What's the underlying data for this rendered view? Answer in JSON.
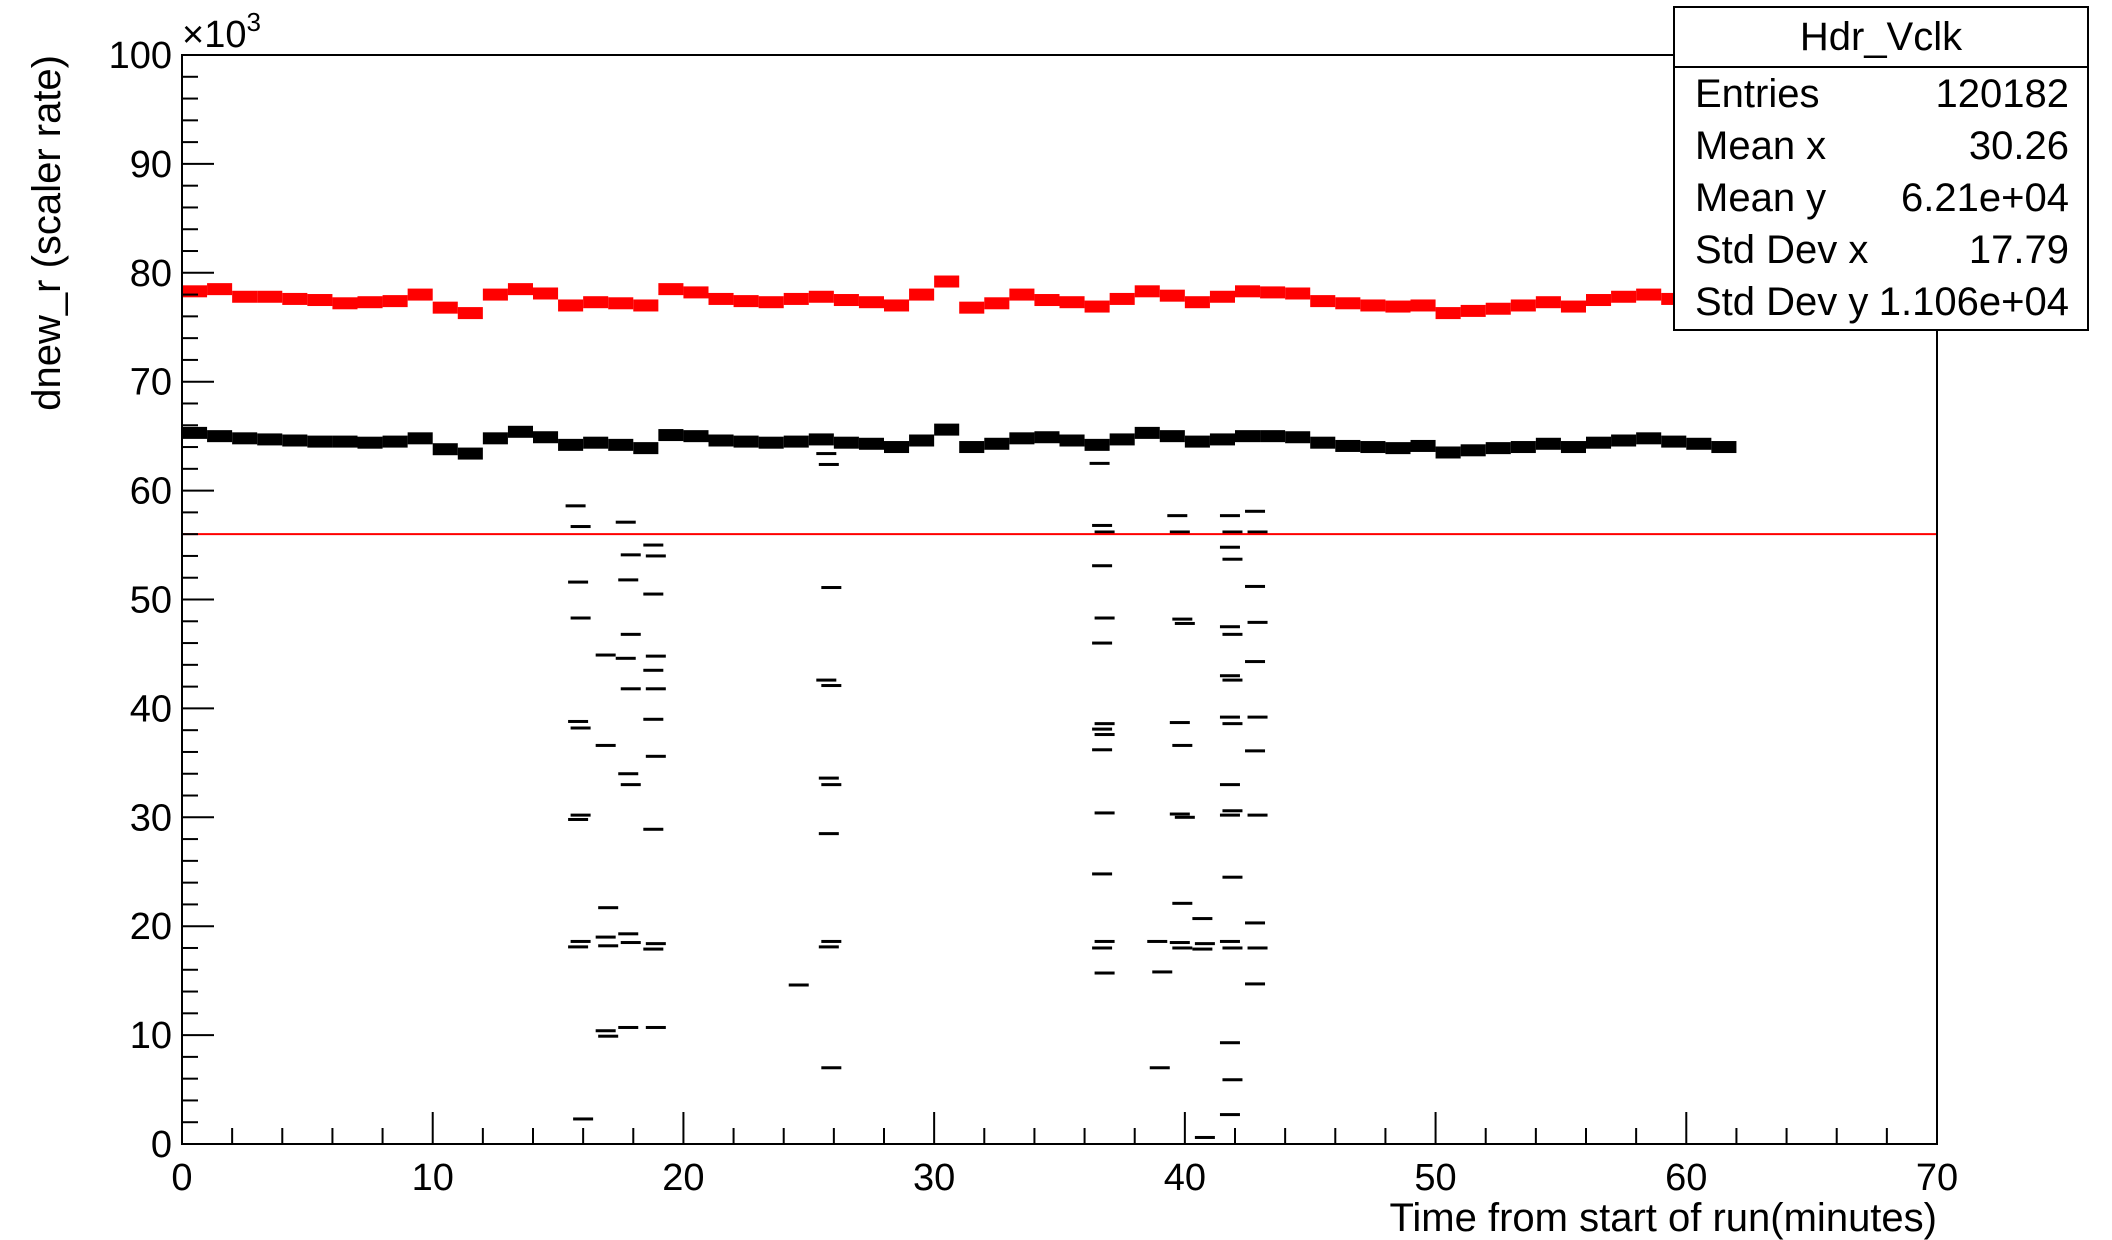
{
  "stats_box": {
    "title": "Hdr_Vclk",
    "rows": [
      {
        "label": "Entries",
        "value": "120182"
      },
      {
        "label": "Mean x",
        "value": "30.26"
      },
      {
        "label": "Mean y",
        "value": "6.21e+04"
      },
      {
        "label": "Std Dev x",
        "value": "17.79"
      },
      {
        "label": "Std Dev y",
        "value": "1.106e+04"
      }
    ]
  },
  "chart_data": {
    "type": "scatter",
    "title": "",
    "xlabel": "Time from start of run(minutes)",
    "ylabel": "dnew_r (scaler rate)",
    "y_multiplier_label": "×10",
    "y_multiplier_exp": "3",
    "xlim": [
      0,
      70
    ],
    "ylim": [
      0,
      100
    ],
    "x_ticks": [
      "0",
      "10",
      "20",
      "30",
      "40",
      "50",
      "60",
      "70"
    ],
    "y_ticks": [
      "0",
      "10",
      "20",
      "30",
      "40",
      "50",
      "60",
      "70",
      "80",
      "90",
      "100"
    ],
    "threshold_line": {
      "y": 56,
      "color": "#ff0000"
    },
    "series": [
      {
        "color": "#ff0000",
        "points": [
          [
            0,
            78.3
          ],
          [
            1,
            78.5
          ],
          [
            2,
            77.8
          ],
          [
            3,
            77.8
          ],
          [
            4,
            77.6
          ],
          [
            5,
            77.5
          ],
          [
            6,
            77.2
          ],
          [
            7,
            77.3
          ],
          [
            8,
            77.4
          ],
          [
            9,
            78.0
          ],
          [
            10,
            76.8
          ],
          [
            11,
            76.3
          ],
          [
            12,
            78.0
          ],
          [
            13,
            78.5
          ],
          [
            14,
            78.1
          ],
          [
            15,
            77.0
          ],
          [
            16,
            77.3
          ],
          [
            17,
            77.2
          ],
          [
            18,
            77.0
          ],
          [
            19,
            78.5
          ],
          [
            20,
            78.2
          ],
          [
            21,
            77.6
          ],
          [
            22,
            77.4
          ],
          [
            23,
            77.3
          ],
          [
            24,
            77.6
          ],
          [
            25,
            77.8
          ],
          [
            26,
            77.5
          ],
          [
            27,
            77.3
          ],
          [
            28,
            77.0
          ],
          [
            29,
            78.0
          ],
          [
            30,
            79.2
          ],
          [
            31,
            76.8
          ],
          [
            32,
            77.2
          ],
          [
            33,
            78.0
          ],
          [
            34,
            77.5
          ],
          [
            35,
            77.3
          ],
          [
            36,
            76.9
          ],
          [
            37,
            77.6
          ],
          [
            38,
            78.3
          ],
          [
            39,
            77.9
          ],
          [
            40,
            77.3
          ],
          [
            41,
            77.8
          ],
          [
            42,
            78.3
          ],
          [
            43,
            78.2
          ],
          [
            44,
            78.1
          ],
          [
            45,
            77.4
          ],
          [
            46,
            77.2
          ],
          [
            47,
            77.0
          ],
          [
            48,
            76.9
          ],
          [
            49,
            77.0
          ],
          [
            50,
            76.3
          ],
          [
            51,
            76.5
          ],
          [
            52,
            76.7
          ],
          [
            53,
            77.0
          ],
          [
            54,
            77.3
          ],
          [
            55,
            76.9
          ],
          [
            56,
            77.5
          ],
          [
            57,
            77.8
          ],
          [
            58,
            78.0
          ],
          [
            59,
            77.6
          ],
          [
            60,
            77.4
          ],
          [
            61,
            77.2
          ],
          [
            62,
            77.0
          ],
          [
            63,
            77.1
          ],
          [
            64,
            77.3
          ],
          [
            65,
            77.2
          ]
        ]
      },
      {
        "color": "#000000",
        "points": [
          [
            0,
            65.3
          ],
          [
            1,
            65.0
          ],
          [
            2,
            64.8
          ],
          [
            3,
            64.7
          ],
          [
            4,
            64.6
          ],
          [
            5,
            64.5
          ],
          [
            6,
            64.5
          ],
          [
            7,
            64.4
          ],
          [
            8,
            64.5
          ],
          [
            9,
            64.8
          ],
          [
            10,
            63.8
          ],
          [
            11,
            63.4
          ],
          [
            12,
            64.8
          ],
          [
            13,
            65.4
          ],
          [
            14,
            64.9
          ],
          [
            15,
            64.2
          ],
          [
            16,
            64.4
          ],
          [
            17,
            64.2
          ],
          [
            18,
            63.9
          ],
          [
            19,
            65.1
          ],
          [
            20,
            65.0
          ],
          [
            21,
            64.6
          ],
          [
            22,
            64.5
          ],
          [
            23,
            64.4
          ],
          [
            24,
            64.5
          ],
          [
            25,
            64.7
          ],
          [
            26,
            64.4
          ],
          [
            27,
            64.3
          ],
          [
            28,
            64.0
          ],
          [
            29,
            64.6
          ],
          [
            30,
            65.6
          ],
          [
            31,
            64.0
          ],
          [
            32,
            64.3
          ],
          [
            33,
            64.8
          ],
          [
            34,
            64.9
          ],
          [
            35,
            64.6
          ],
          [
            36,
            64.2
          ],
          [
            37,
            64.7
          ],
          [
            38,
            65.3
          ],
          [
            39,
            65.0
          ],
          [
            40,
            64.5
          ],
          [
            41,
            64.7
          ],
          [
            42,
            65.0
          ],
          [
            43,
            65.0
          ],
          [
            44,
            64.9
          ],
          [
            45,
            64.4
          ],
          [
            46,
            64.1
          ],
          [
            47,
            64.0
          ],
          [
            48,
            63.9
          ],
          [
            49,
            64.1
          ],
          [
            50,
            63.5
          ],
          [
            51,
            63.7
          ],
          [
            52,
            63.9
          ],
          [
            53,
            64.0
          ],
          [
            54,
            64.3
          ],
          [
            55,
            64.0
          ],
          [
            56,
            64.4
          ],
          [
            57,
            64.6
          ],
          [
            58,
            64.8
          ],
          [
            59,
            64.5
          ],
          [
            60,
            64.3
          ],
          [
            61,
            64.0
          ]
        ]
      },
      {
        "color": "#000000",
        "points": [
          [
            15.3,
            58.6
          ],
          [
            15.5,
            56.7
          ],
          [
            15.4,
            51.6
          ],
          [
            15.5,
            48.3
          ],
          [
            15.4,
            38.8
          ],
          [
            15.5,
            38.2
          ],
          [
            15.5,
            30.2
          ],
          [
            15.4,
            29.8
          ],
          [
            15.5,
            18.6
          ],
          [
            15.4,
            18.1
          ],
          [
            15.6,
            2.3
          ],
          [
            16.5,
            44.9
          ],
          [
            16.5,
            36.6
          ],
          [
            16.6,
            21.7
          ],
          [
            16.5,
            19.0
          ],
          [
            16.6,
            18.2
          ],
          [
            16.5,
            10.4
          ],
          [
            16.6,
            9.9
          ],
          [
            17.3,
            57.1
          ],
          [
            17.5,
            54.1
          ],
          [
            17.4,
            51.8
          ],
          [
            17.5,
            46.8
          ],
          [
            17.3,
            44.6
          ],
          [
            17.5,
            41.8
          ],
          [
            17.4,
            34.0
          ],
          [
            17.5,
            33.0
          ],
          [
            17.4,
            19.3
          ],
          [
            17.5,
            18.5
          ],
          [
            17.4,
            10.7
          ],
          [
            18.4,
            55.0
          ],
          [
            18.5,
            54.0
          ],
          [
            18.4,
            50.5
          ],
          [
            18.5,
            44.8
          ],
          [
            18.4,
            43.5
          ],
          [
            18.5,
            41.8
          ],
          [
            18.4,
            39.0
          ],
          [
            18.5,
            35.6
          ],
          [
            18.4,
            28.9
          ],
          [
            18.5,
            18.4
          ],
          [
            18.4,
            17.9
          ],
          [
            18.5,
            10.7
          ],
          [
            24.2,
            14.6
          ],
          [
            25.3,
            63.4
          ],
          [
            25.4,
            62.4
          ],
          [
            25.5,
            51.1
          ],
          [
            25.3,
            42.6
          ],
          [
            25.5,
            42.1
          ],
          [
            25.4,
            33.6
          ],
          [
            25.5,
            33.0
          ],
          [
            25.4,
            28.5
          ],
          [
            25.5,
            18.6
          ],
          [
            25.4,
            18.1
          ],
          [
            25.5,
            7.0
          ],
          [
            36.2,
            62.5
          ],
          [
            36.3,
            56.8
          ],
          [
            36.4,
            56.2
          ],
          [
            36.3,
            53.1
          ],
          [
            36.4,
            48.3
          ],
          [
            36.3,
            46.0
          ],
          [
            36.4,
            38.6
          ],
          [
            36.3,
            38.1
          ],
          [
            36.4,
            37.6
          ],
          [
            36.3,
            36.2
          ],
          [
            36.4,
            30.4
          ],
          [
            36.3,
            24.8
          ],
          [
            36.4,
            18.6
          ],
          [
            36.3,
            18.0
          ],
          [
            36.4,
            15.7
          ],
          [
            38.5,
            18.6
          ],
          [
            38.7,
            15.8
          ],
          [
            38.6,
            7.0
          ],
          [
            39.3,
            57.7
          ],
          [
            39.4,
            56.2
          ],
          [
            39.5,
            48.2
          ],
          [
            39.6,
            47.8
          ],
          [
            39.4,
            38.7
          ],
          [
            39.5,
            36.6
          ],
          [
            39.4,
            30.3
          ],
          [
            39.6,
            30.0
          ],
          [
            39.5,
            22.1
          ],
          [
            39.4,
            18.5
          ],
          [
            39.5,
            18.0
          ],
          [
            40.3,
            20.7
          ],
          [
            40.4,
            18.4
          ],
          [
            40.3,
            17.9
          ],
          [
            40.4,
            0.6
          ],
          [
            41.4,
            57.7
          ],
          [
            41.5,
            56.2
          ],
          [
            41.4,
            54.8
          ],
          [
            41.5,
            53.7
          ],
          [
            41.4,
            47.5
          ],
          [
            41.5,
            46.8
          ],
          [
            41.4,
            43.0
          ],
          [
            41.5,
            42.6
          ],
          [
            41.4,
            39.2
          ],
          [
            41.5,
            38.6
          ],
          [
            41.4,
            33.0
          ],
          [
            41.5,
            30.6
          ],
          [
            41.4,
            30.2
          ],
          [
            41.5,
            24.5
          ],
          [
            41.4,
            18.6
          ],
          [
            41.5,
            18.0
          ],
          [
            41.4,
            9.3
          ],
          [
            41.5,
            5.9
          ],
          [
            41.4,
            2.7
          ],
          [
            42.4,
            58.1
          ],
          [
            42.5,
            56.2
          ],
          [
            42.4,
            51.2
          ],
          [
            42.5,
            47.9
          ],
          [
            42.4,
            44.3
          ],
          [
            42.5,
            39.2
          ],
          [
            42.4,
            36.1
          ],
          [
            42.5,
            30.2
          ],
          [
            42.4,
            20.3
          ],
          [
            42.5,
            18.0
          ],
          [
            42.4,
            14.7
          ]
        ]
      }
    ]
  }
}
